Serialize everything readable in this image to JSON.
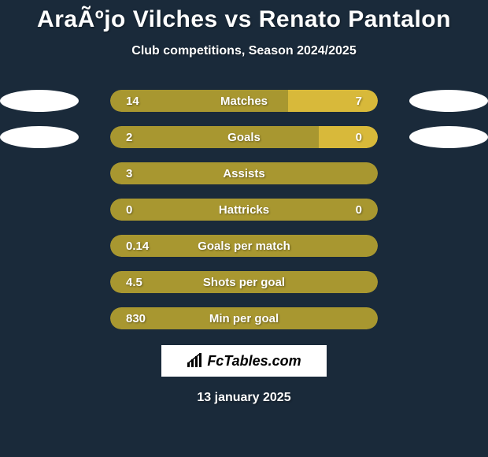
{
  "colors": {
    "background": "#1a2a3a",
    "player1_bar": "#a89730",
    "player2_bar": "#d8b93a",
    "ellipse": "#ffffff",
    "text": "#ffffff"
  },
  "header": {
    "title": "AraÃºjo Vilches vs Renato Pantalon",
    "subtitle": "Club competitions, Season 2024/2025"
  },
  "stats": [
    {
      "label": "Matches",
      "left_val": "14",
      "right_val": "7",
      "left_pct": 66.6,
      "right_pct": 33.4,
      "show_right": true
    },
    {
      "label": "Goals",
      "left_val": "2",
      "right_val": "0",
      "left_pct": 78,
      "right_pct": 22,
      "show_right": true
    },
    {
      "label": "Assists",
      "left_val": "3",
      "right_val": "",
      "left_pct": 100,
      "right_pct": 0,
      "show_right": false
    },
    {
      "label": "Hattricks",
      "left_val": "0",
      "right_val": "0",
      "left_pct": 100,
      "right_pct": 0,
      "show_right": true
    },
    {
      "label": "Goals per match",
      "left_val": "0.14",
      "right_val": "",
      "left_pct": 100,
      "right_pct": 0,
      "show_right": false
    },
    {
      "label": "Shots per goal",
      "left_val": "4.5",
      "right_val": "",
      "left_pct": 100,
      "right_pct": 0,
      "show_right": false
    },
    {
      "label": "Min per goal",
      "left_val": "830",
      "right_val": "",
      "left_pct": 100,
      "right_pct": 0,
      "show_right": false
    }
  ],
  "ellipses": [
    {
      "side": "left",
      "row": 0
    },
    {
      "side": "left",
      "row": 1
    },
    {
      "side": "right",
      "row": 0
    },
    {
      "side": "right",
      "row": 1
    }
  ],
  "footer": {
    "logo_text": "FcTables.com",
    "date": "13 january 2025"
  }
}
